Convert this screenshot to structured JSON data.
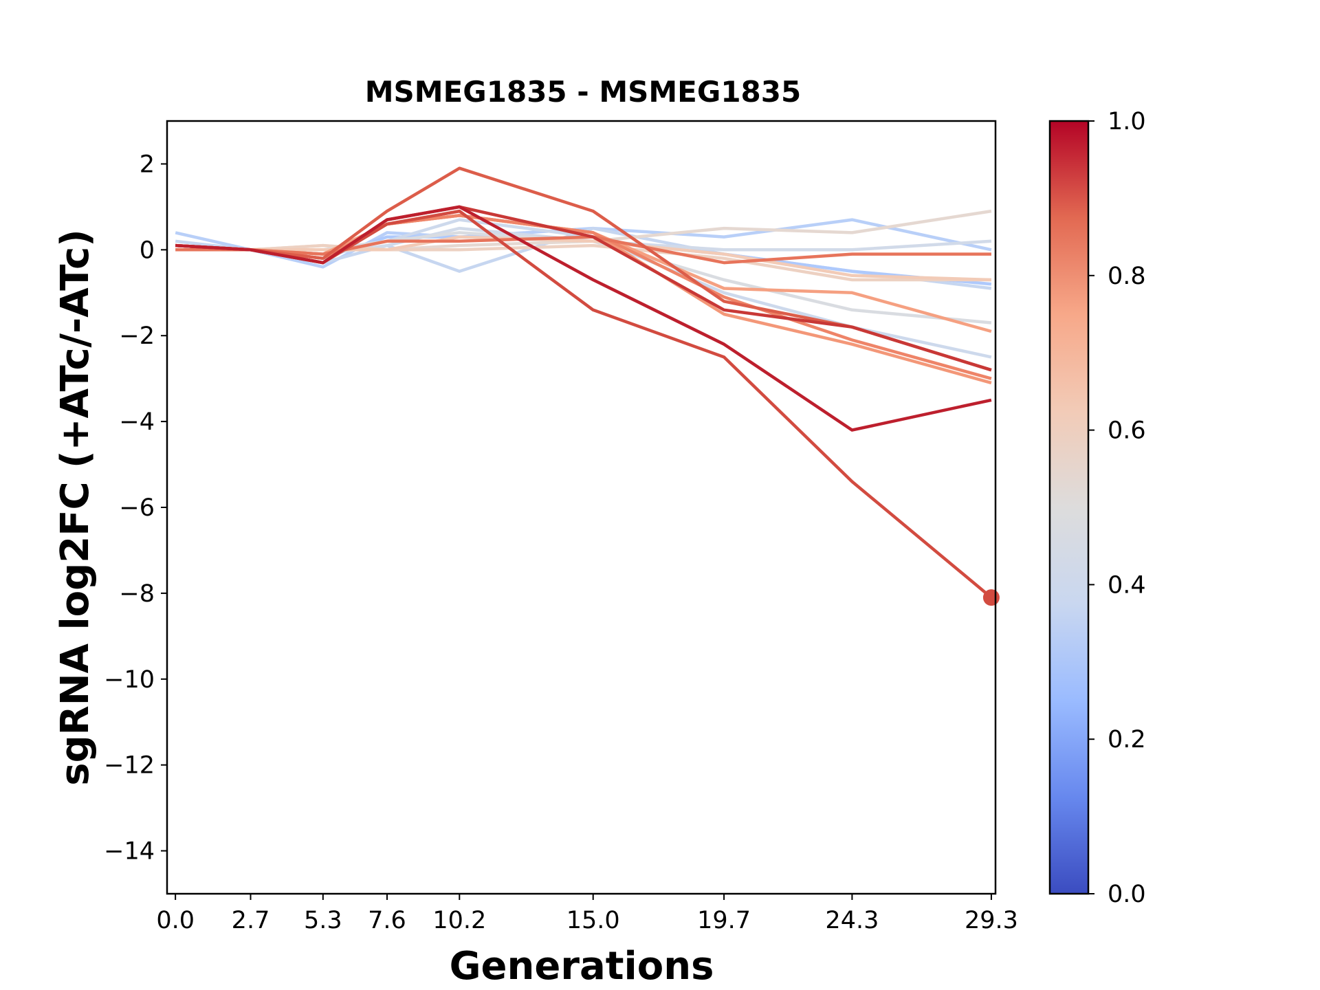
{
  "chart_data": {
    "type": "line",
    "title": "MSMEG1835 - MSMEG1835",
    "xlabel": "Generations",
    "ylabel": "sgRNA log2FC (+ATc/-ATc)",
    "x": [
      0.0,
      2.7,
      5.3,
      7.6,
      10.2,
      15.0,
      19.7,
      24.3,
      29.3
    ],
    "x_tick_labels": [
      "0.0",
      "2.7",
      "5.3",
      "7.6",
      "10.2",
      "15.0",
      "19.7",
      "24.3",
      "29.3"
    ],
    "ylim": [
      -15,
      3
    ],
    "y_ticks": [
      2,
      0,
      -2,
      -4,
      -6,
      -8,
      -10,
      -12,
      -14
    ],
    "y_tick_labels": [
      "2",
      "0",
      "−2",
      "−4",
      "−6",
      "−8",
      "−10",
      "−12",
      "−14"
    ],
    "colormap": "coolwarm",
    "colorbar": {
      "range": [
        0.0,
        1.0
      ],
      "ticks": [
        "0.0",
        "0.2",
        "0.4",
        "0.6",
        "0.8",
        "1.0"
      ],
      "stops": [
        "#3b4cc0",
        "#6788ee",
        "#9abbff",
        "#c9d7f0",
        "#dddcdc",
        "#f2cbb7",
        "#f7a889",
        "#e26952",
        "#b40426"
      ]
    },
    "grid": false,
    "series": [
      {
        "color": "#b8cff8",
        "values": [
          0.4,
          0.0,
          -0.4,
          0.4,
          0.3,
          0.5,
          0.3,
          0.7,
          0.0
        ]
      },
      {
        "color": "#c6d6f0",
        "values": [
          0.2,
          0.0,
          -0.3,
          0.1,
          -0.5,
          0.5,
          -0.1,
          -0.5,
          -0.9
        ]
      },
      {
        "color": "#aec9fc",
        "values": [
          0.1,
          0.0,
          -0.2,
          0.3,
          0.3,
          0.2,
          -0.1,
          -0.5,
          -0.8
        ]
      },
      {
        "color": "#cdd9ec",
        "values": [
          0.0,
          0.0,
          -0.1,
          0.2,
          0.7,
          0.3,
          -1.0,
          -1.8,
          -2.5
        ]
      },
      {
        "color": "#d1dae9",
        "values": [
          0.0,
          0.0,
          -0.1,
          0.1,
          0.5,
          0.2,
          0.0,
          0.0,
          0.2
        ]
      },
      {
        "color": "#d9dce1",
        "values": [
          0.0,
          0.0,
          0.0,
          0.2,
          0.4,
          0.2,
          -0.7,
          -1.4,
          -1.7
        ]
      },
      {
        "color": "#e5d8d1",
        "values": [
          0.0,
          0.0,
          0.1,
          0.0,
          0.1,
          0.2,
          0.5,
          0.4,
          0.9
        ]
      },
      {
        "color": "#edd1c2",
        "values": [
          0.0,
          0.0,
          0.1,
          0.0,
          0.0,
          0.1,
          -0.2,
          -0.7,
          -0.7
        ]
      },
      {
        "color": "#f2cbb7",
        "values": [
          0.0,
          0.0,
          0.0,
          0.0,
          0.3,
          0.2,
          -0.1,
          -0.6,
          -0.7
        ]
      },
      {
        "color": "#f5a081",
        "values": [
          0.1,
          0.0,
          -0.1,
          0.6,
          0.8,
          0.4,
          -0.9,
          -1.0,
          -1.9
        ]
      },
      {
        "color": "#f39778",
        "values": [
          0.1,
          0.0,
          -0.2,
          0.6,
          0.8,
          0.4,
          -1.5,
          -2.2,
          -3.1
        ]
      },
      {
        "color": "#ee8468",
        "values": [
          0.1,
          0.0,
          -0.2,
          0.6,
          0.8,
          0.4,
          -1.1,
          -2.1,
          -3.0
        ]
      },
      {
        "color": "#e7745b",
        "values": [
          0.0,
          0.0,
          -0.1,
          0.2,
          0.2,
          0.3,
          -0.3,
          -0.1,
          -0.1
        ]
      },
      {
        "color": "#dc5d4a",
        "values": [
          0.1,
          0.0,
          -0.2,
          0.9,
          1.9,
          0.9,
          -1.2,
          -1.8,
          -2.8
        ]
      },
      {
        "color": "#d24b40",
        "values": [
          0.1,
          0.0,
          -0.3,
          0.6,
          0.9,
          -1.4,
          -2.5,
          -5.4,
          -8.1
        ]
      },
      {
        "color": "#c83836",
        "values": [
          0.1,
          0.0,
          -0.3,
          0.7,
          1.0,
          0.3,
          -1.4,
          -1.8,
          -2.8
        ]
      },
      {
        "color": "#bd1f2d",
        "values": [
          0.1,
          0.0,
          -0.3,
          0.7,
          1.0,
          -0.7,
          -2.2,
          -4.2,
          -3.5
        ]
      }
    ],
    "highlight_point": {
      "x": 29.3,
      "y": -8.1,
      "color": "#d24b40"
    }
  }
}
